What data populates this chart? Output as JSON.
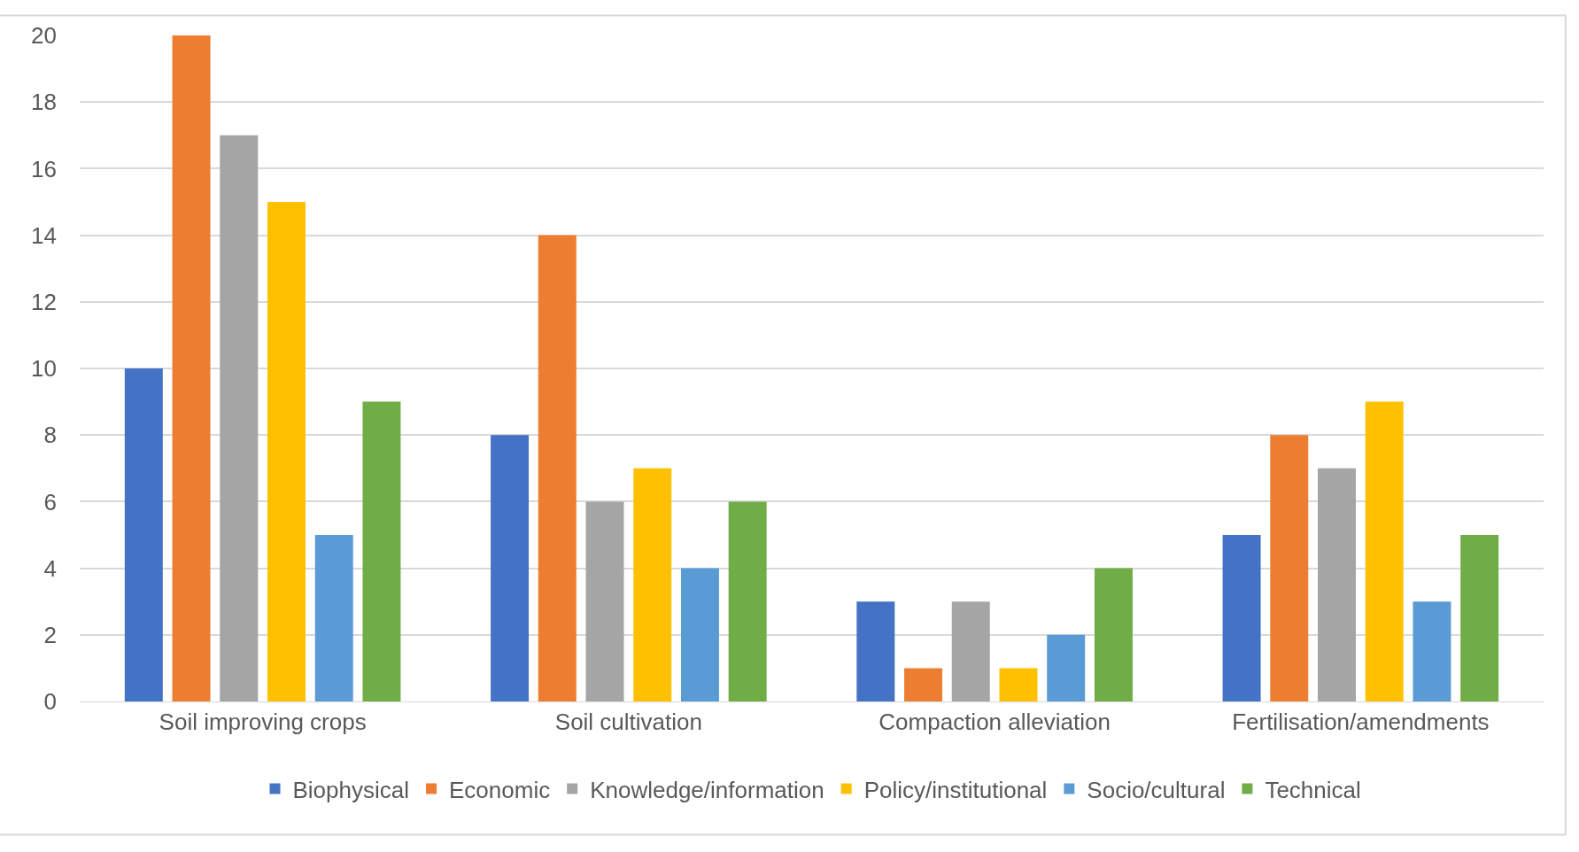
{
  "chart_data": {
    "type": "bar",
    "categories": [
      "Soil improving crops",
      "Soil cultivation",
      "Compaction alleviation",
      "Fertilisation/amendments"
    ],
    "series": [
      {
        "name": "Biophysical",
        "color": "#4472c4",
        "values": [
          10,
          8,
          3,
          5
        ]
      },
      {
        "name": "Economic",
        "color": "#ed7d31",
        "values": [
          20,
          14,
          1,
          8
        ]
      },
      {
        "name": "Knowledge/information",
        "color": "#a5a5a5",
        "values": [
          17,
          6,
          3,
          7
        ]
      },
      {
        "name": "Policy/institutional",
        "color": "#ffc000",
        "values": [
          15,
          7,
          1,
          9
        ]
      },
      {
        "name": "Socio/cultural",
        "color": "#5b9bd5",
        "values": [
          5,
          4,
          2,
          3
        ]
      },
      {
        "name": "Technical",
        "color": "#70ad47",
        "values": [
          9,
          6,
          4,
          5
        ]
      }
    ],
    "ylim": [
      0,
      20
    ],
    "yticks": [
      0,
      2,
      4,
      6,
      8,
      10,
      12,
      14,
      16,
      18,
      20
    ],
    "grid": "y",
    "legend": "bottom"
  }
}
